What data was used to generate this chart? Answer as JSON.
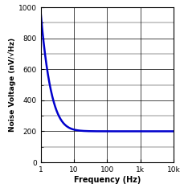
{
  "title": "",
  "xlabel": "Frequency (Hz)",
  "ylabel": "Noise Voltage (nV/√Hz)",
  "xlim": [
    1,
    10000
  ],
  "ylim": [
    0,
    1000
  ],
  "yticks": [
    0,
    200,
    400,
    600,
    800,
    1000
  ],
  "xticks": [
    1,
    10,
    100,
    1000,
    10000
  ],
  "xticklabels": [
    "1",
    "10",
    "100",
    "1k",
    "10k"
  ],
  "line_color": "#0000cc",
  "line_width": 1.8,
  "background_color": "#ffffff",
  "grid_color": "#000000",
  "flat_noise": 200,
  "noise_exponent": 1.15,
  "start_noise": 970,
  "K_noise": 950
}
